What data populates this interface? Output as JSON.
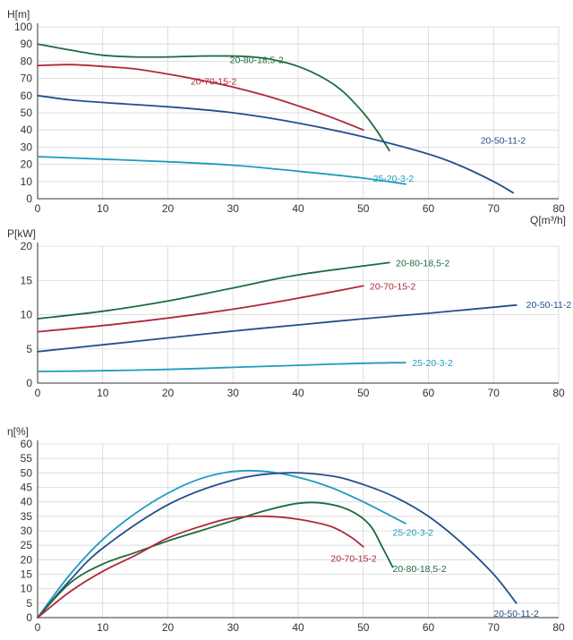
{
  "colors": {
    "20-80-18,5-2": "#1d6b3d",
    "20-70-15-2": "#b0283a",
    "20-50-11-2": "#234f8c",
    "25-20-3-2": "#1f9bc0"
  },
  "chart_data": [
    {
      "type": "line",
      "ylabel": "H[m]",
      "xlabel": "Q[m³/h]",
      "xlim": [
        0,
        80
      ],
      "ylim": [
        0,
        100
      ],
      "xticks": [
        0,
        10,
        20,
        30,
        40,
        50,
        60,
        70,
        80
      ],
      "yticks": [
        0,
        10,
        20,
        30,
        40,
        50,
        60,
        70,
        80,
        90,
        100
      ],
      "grid": true,
      "series": [
        {
          "name": "20-80-18,5-2",
          "label_at": [
            29.5,
            81
          ],
          "x": [
            0,
            5,
            10,
            15,
            20,
            25,
            30,
            33,
            36,
            40,
            44,
            47,
            50,
            52,
            54
          ],
          "y": [
            90,
            86.5,
            83.5,
            82.5,
            82.5,
            83,
            83,
            82.5,
            81,
            77,
            70,
            62,
            50,
            40,
            28
          ]
        },
        {
          "name": "20-70-15-2",
          "label_at": [
            23.5,
            68.5
          ],
          "x": [
            0,
            5,
            10,
            15,
            20,
            25,
            30,
            35,
            40,
            45,
            50
          ],
          "y": [
            77.5,
            78,
            77,
            75.5,
            72.5,
            69,
            65,
            60,
            54,
            47.5,
            40
          ]
        },
        {
          "name": "20-50-11-2",
          "label_at": [
            68,
            34
          ],
          "x": [
            0,
            5,
            10,
            20,
            30,
            40,
            50,
            60,
            65,
            70,
            73
          ],
          "y": [
            60,
            57.5,
            56,
            53.5,
            50,
            44,
            36,
            26,
            19,
            10,
            3.5
          ]
        },
        {
          "name": "25-20-3-2",
          "label_at": [
            51.5,
            12
          ],
          "x": [
            0,
            10,
            20,
            30,
            40,
            50,
            56.5
          ],
          "y": [
            24.5,
            23,
            21.5,
            19.5,
            16,
            12,
            8.5
          ]
        }
      ]
    },
    {
      "type": "line",
      "ylabel": "P[kW]",
      "xlabel": "",
      "xlim": [
        0,
        80
      ],
      "ylim": [
        0,
        20
      ],
      "xticks": [
        0,
        10,
        20,
        30,
        40,
        50,
        60,
        70,
        80
      ],
      "yticks": [
        0,
        5,
        10,
        15,
        20
      ],
      "grid": true,
      "series": [
        {
          "name": "20-80-18,5-2",
          "label_at": [
            55,
            17.6
          ],
          "x": [
            0,
            10,
            20,
            30,
            40,
            54
          ],
          "y": [
            9.4,
            10.5,
            12,
            13.9,
            15.8,
            17.6
          ]
        },
        {
          "name": "20-70-15-2",
          "label_at": [
            51,
            14.2
          ],
          "x": [
            0,
            10,
            20,
            30,
            40,
            50
          ],
          "y": [
            7.5,
            8.4,
            9.5,
            10.8,
            12.4,
            14.2
          ]
        },
        {
          "name": "20-50-11-2",
          "label_at": [
            75,
            11.5
          ],
          "x": [
            0,
            10,
            20,
            30,
            40,
            50,
            60,
            73.5
          ],
          "y": [
            4.6,
            5.6,
            6.6,
            7.6,
            8.5,
            9.4,
            10.2,
            11.4
          ]
        },
        {
          "name": "25-20-3-2",
          "label_at": [
            57.5,
            3.0
          ],
          "x": [
            0,
            10,
            20,
            30,
            40,
            50,
            56.5
          ],
          "y": [
            1.7,
            1.8,
            2.0,
            2.3,
            2.6,
            2.9,
            3.0
          ]
        }
      ]
    },
    {
      "type": "line",
      "ylabel": "η[%]",
      "xlabel": "",
      "xlim": [
        0,
        80
      ],
      "ylim": [
        0,
        60
      ],
      "xticks": [
        0,
        10,
        20,
        30,
        40,
        50,
        60,
        70,
        80
      ],
      "yticks": [
        0,
        5,
        10,
        15,
        20,
        25,
        30,
        35,
        40,
        45,
        50,
        55,
        60
      ],
      "grid": true,
      "series": [
        {
          "name": "25-20-3-2",
          "label_at": [
            54.5,
            29.5
          ],
          "x": [
            0,
            5,
            10,
            15,
            20,
            25,
            30,
            35,
            40,
            45,
            50,
            56.5
          ],
          "y": [
            0,
            15,
            27,
            36,
            43,
            48,
            50.5,
            50.5,
            48.5,
            45,
            40,
            32.5
          ]
        },
        {
          "name": "20-50-11-2",
          "label_at": [
            70,
            1.5
          ],
          "x": [
            0,
            5,
            10,
            20,
            30,
            38,
            45,
            50,
            55,
            60,
            65,
            70,
            73.5
          ],
          "y": [
            0,
            13,
            24,
            39,
            47.5,
            50,
            49,
            46,
            41.5,
            35,
            26,
            15,
            5
          ]
        },
        {
          "name": "20-80-18,5-2",
          "label_at": [
            54.5,
            17
          ],
          "x": [
            0,
            5,
            10,
            15,
            20,
            25,
            30,
            35,
            40,
            44,
            48,
            51,
            53,
            54.5
          ],
          "y": [
            0,
            12,
            18.5,
            22.5,
            26.5,
            30,
            33.5,
            37,
            39.5,
            39.5,
            37,
            32,
            24,
            17.5
          ]
        },
        {
          "name": "20-70-15-2",
          "label_at": [
            45,
            20.5
          ],
          "x": [
            0,
            5,
            10,
            15,
            20,
            25,
            30,
            35,
            40,
            45,
            48,
            50
          ],
          "y": [
            0,
            9,
            16,
            21.5,
            27.5,
            31.5,
            34.5,
            35,
            34,
            31.5,
            28,
            24.5
          ]
        }
      ]
    }
  ]
}
